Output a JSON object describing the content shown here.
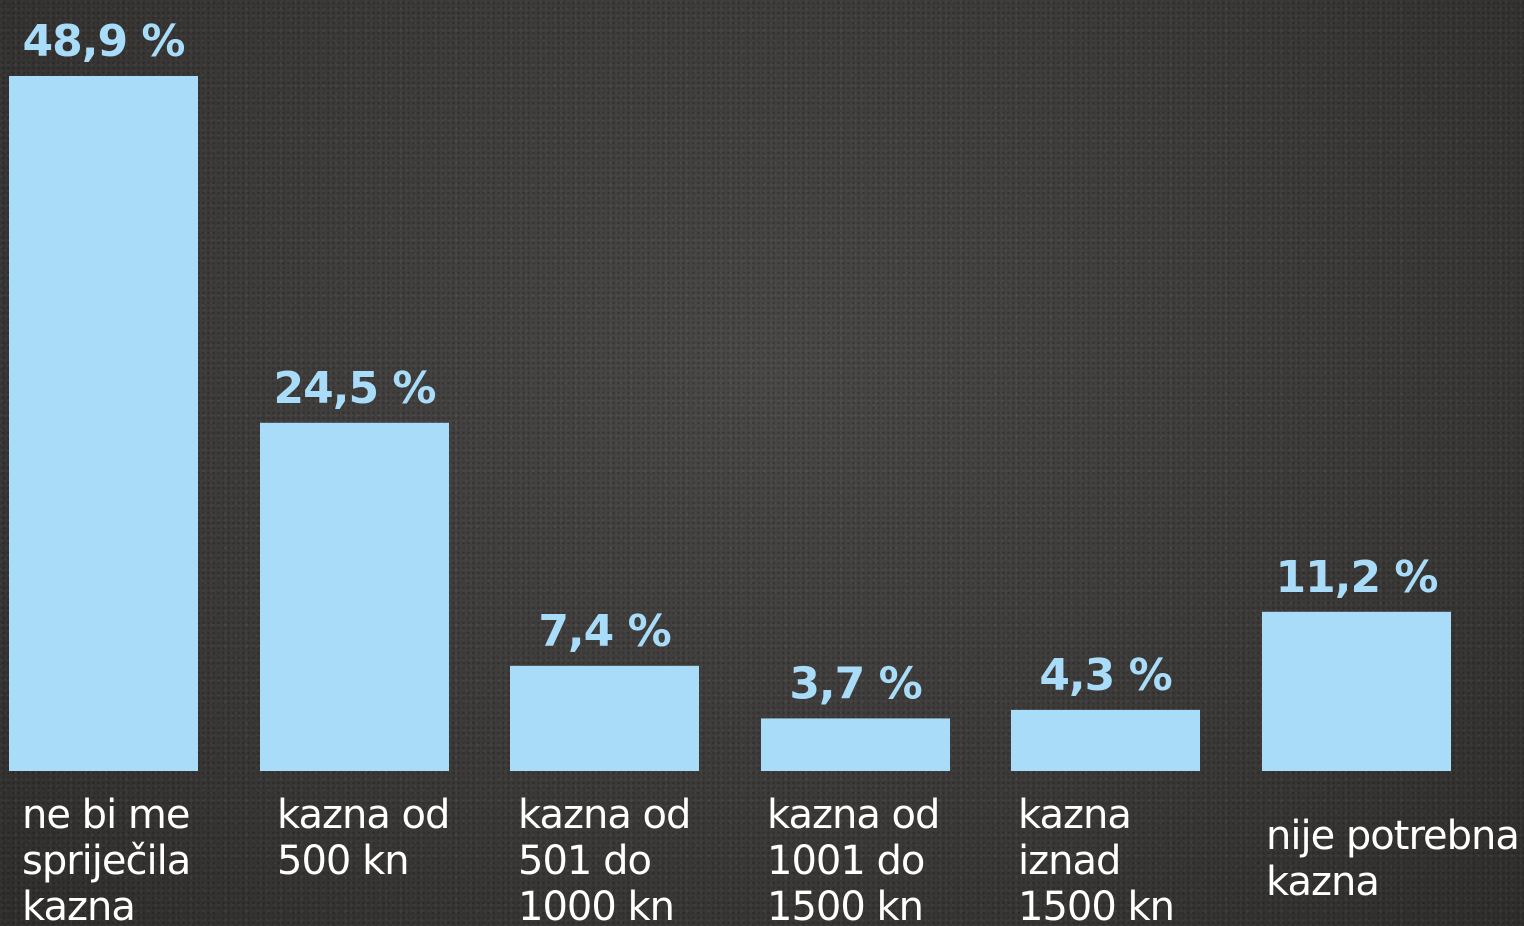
{
  "colors": {
    "bar": "#a8dcf8",
    "value_label": "#a8dcf8",
    "category_label": "#ffffff"
  },
  "chart_data": {
    "type": "bar",
    "categories": [
      [
        "ne bi me",
        "spriječila",
        "kazna"
      ],
      [
        "kazna od",
        "500 kn"
      ],
      [
        "kazna od",
        "501 do",
        "1000 kn"
      ],
      [
        "kazna od",
        "1001 do",
        "1500 kn"
      ],
      [
        "kazna",
        "iznad",
        "1500 kn"
      ],
      [
        "nije potrebna",
        "kazna"
      ]
    ],
    "values": [
      48.9,
      24.5,
      7.4,
      3.7,
      4.3,
      11.2
    ],
    "value_labels": [
      "48,9 %",
      "24,5 %",
      "7,4 %",
      "3,7 %",
      "4,3 %",
      "11,2 %"
    ],
    "ylim": [
      0,
      48.9
    ],
    "grid": false,
    "legend": "none"
  }
}
